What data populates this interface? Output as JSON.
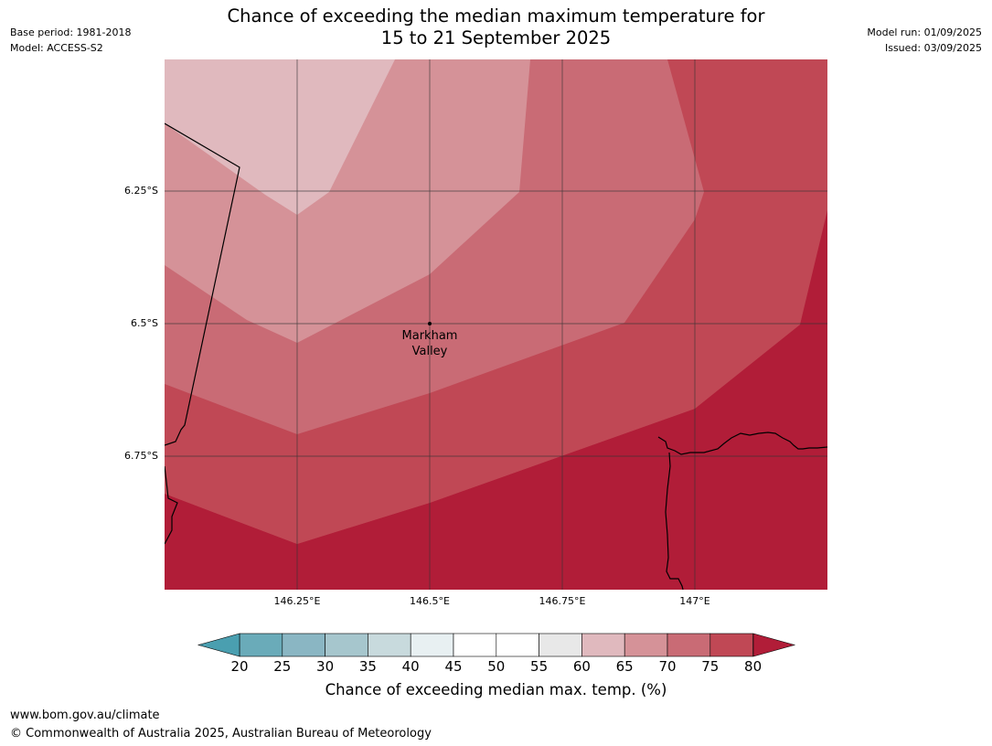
{
  "title": {
    "line1": "Chance of exceeding the median maximum temperature for",
    "line2": "15 to 21 September 2025"
  },
  "meta_left": {
    "base_period": "Base period: 1981-2018",
    "model": "Model: ACCESS-S2"
  },
  "meta_right": {
    "model_run": "Model run: 01/09/2025",
    "issued": "Issued: 03/09/2025"
  },
  "map": {
    "lat_labels": [
      "6.25°S",
      "6.5°S",
      "6.75°S"
    ],
    "lon_labels": [
      "146.25°E",
      "146.5°E",
      "146.75°E",
      "147°E"
    ],
    "place": {
      "line1": "Markham",
      "line2": "Valley"
    },
    "colors": {
      "c60_65": "#e0b9be",
      "c65_70": "#d59298",
      "c70_75": "#c96b75",
      "c75_80": "#c04855",
      "c80_plus": "#b11d38",
      "grid": "#333333",
      "coast": "#000000"
    }
  },
  "colorbar": {
    "ticks": [
      "20",
      "25",
      "30",
      "35",
      "40",
      "45",
      "50",
      "55",
      "60",
      "65",
      "70",
      "75",
      "80"
    ],
    "colors": [
      "#6aabb9",
      "#8ab6c3",
      "#a6c6cd",
      "#c8dadd",
      "#e8f0f2",
      "#ffffff",
      "#ffffff",
      "#e8e8e8",
      "#e0b9be",
      "#d59298",
      "#c96b75",
      "#c04855"
    ],
    "under_color": "#4a9fb0",
    "over_color": "#b11d38",
    "label": "Chance of exceeding median max. temp. (%)"
  },
  "footer": {
    "url": "www.bom.gov.au/climate",
    "copyright": "© Commonwealth of Australia 2025, Australian Bureau of Meteorology"
  }
}
